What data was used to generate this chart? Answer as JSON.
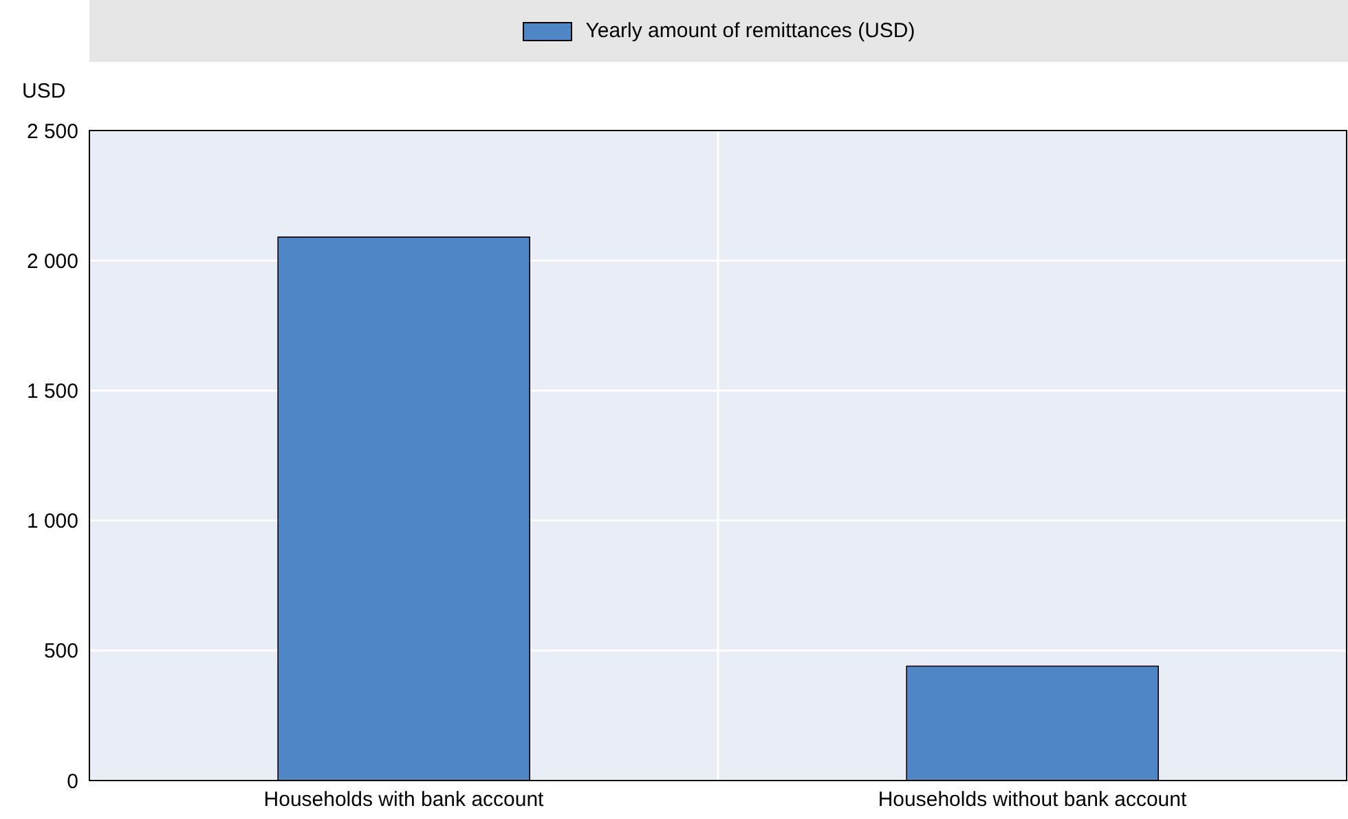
{
  "chart_data": {
    "type": "bar",
    "ylabel": "USD",
    "categories": [
      "Households with bank account",
      "Households without bank account"
    ],
    "series": [
      {
        "name": "Yearly amount of remittances (USD)",
        "color": "#4e86c6",
        "values": [
          2090,
          440
        ]
      }
    ],
    "ylim": [
      0,
      2500
    ],
    "yticks": [
      0,
      {
        "value": 500,
        "label": "500"
      },
      {
        "value": 1000,
        "label": "1 000"
      },
      {
        "value": 1500,
        "label": "1 500"
      },
      {
        "value": 2000,
        "label": "2 000"
      },
      {
        "value": 2500,
        "label": "2 500"
      }
    ],
    "grid": true,
    "legend": "top"
  }
}
